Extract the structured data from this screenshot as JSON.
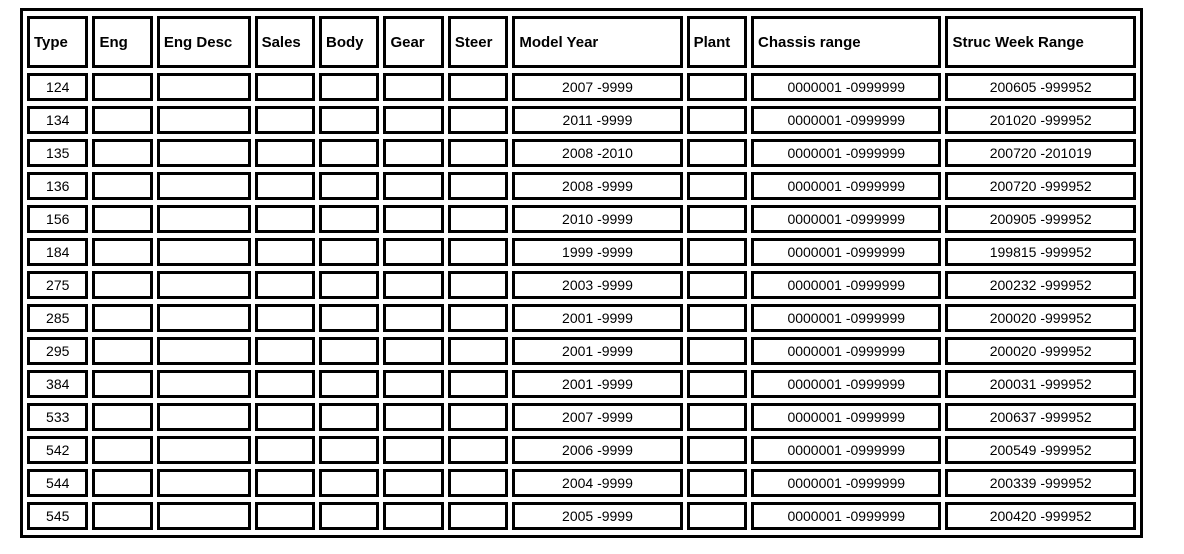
{
  "table": {
    "headers": [
      "Type",
      "Eng",
      "Eng Desc",
      "Sales",
      "Body",
      "Gear",
      "Steer",
      "Model Year",
      "Plant",
      "Chassis range",
      "Struc Week Range"
    ],
    "rows": [
      [
        "124",
        "",
        "",
        "",
        "",
        "",
        "",
        "2007 -9999",
        "",
        "0000001 -0999999",
        "200605 -999952"
      ],
      [
        "134",
        "",
        "",
        "",
        "",
        "",
        "",
        "2011 -9999",
        "",
        "0000001 -0999999",
        "201020 -999952"
      ],
      [
        "135",
        "",
        "",
        "",
        "",
        "",
        "",
        "2008 -2010",
        "",
        "0000001 -0999999",
        "200720 -201019"
      ],
      [
        "136",
        "",
        "",
        "",
        "",
        "",
        "",
        "2008 -9999",
        "",
        "0000001 -0999999",
        "200720 -999952"
      ],
      [
        "156",
        "",
        "",
        "",
        "",
        "",
        "",
        "2010 -9999",
        "",
        "0000001 -0999999",
        "200905 -999952"
      ],
      [
        "184",
        "",
        "",
        "",
        "",
        "",
        "",
        "1999 -9999",
        "",
        "0000001 -0999999",
        "199815 -999952"
      ],
      [
        "275",
        "",
        "",
        "",
        "",
        "",
        "",
        "2003 -9999",
        "",
        "0000001 -0999999",
        "200232 -999952"
      ],
      [
        "285",
        "",
        "",
        "",
        "",
        "",
        "",
        "2001 -9999",
        "",
        "0000001 -0999999",
        "200020 -999952"
      ],
      [
        "295",
        "",
        "",
        "",
        "",
        "",
        "",
        "2001 -9999",
        "",
        "0000001 -0999999",
        "200020 -999952"
      ],
      [
        "384",
        "",
        "",
        "",
        "",
        "",
        "",
        "2001 -9999",
        "",
        "0000001 -0999999",
        "200031 -999952"
      ],
      [
        "533",
        "",
        "",
        "",
        "",
        "",
        "",
        "2007 -9999",
        "",
        "0000001 -0999999",
        "200637 -999952"
      ],
      [
        "542",
        "",
        "",
        "",
        "",
        "",
        "",
        "2006 -9999",
        "",
        "0000001 -0999999",
        "200549 -999952"
      ],
      [
        "544",
        "",
        "",
        "",
        "",
        "",
        "",
        "2004 -9999",
        "",
        "0000001 -0999999",
        "200339 -999952"
      ],
      [
        "545",
        "",
        "",
        "",
        "",
        "",
        "",
        "2005 -9999",
        "",
        "0000001 -0999999",
        "200420 -999952"
      ]
    ]
  }
}
